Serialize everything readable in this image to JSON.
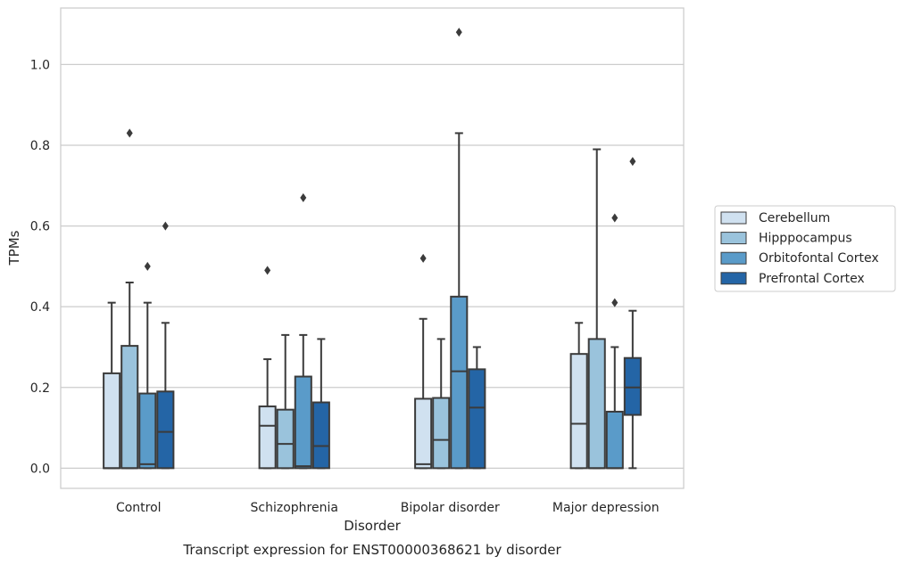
{
  "chart_data": {
    "type": "boxplot",
    "title": "Transcript expression for ENST00000368621 by disorder",
    "xlabel": "Disorder",
    "ylabel": "TPMs",
    "ylim": [
      -0.05,
      1.14
    ],
    "yticks": [
      0.0,
      0.2,
      0.4,
      0.6,
      0.8,
      1.0
    ],
    "ytick_labels": [
      "0.0",
      "0.2",
      "0.4",
      "0.6",
      "0.8",
      "1.0"
    ],
    "grid": "horizontal",
    "legend_position": "right",
    "categories": [
      "Control",
      "Schizophrenia",
      "Bipolar disorder",
      "Major depression"
    ],
    "series": [
      {
        "name": "Cerebellum",
        "color": "#d0e1f0",
        "boxes": [
          {
            "whislo": 0.0,
            "q1": 0.0,
            "med": 0.0,
            "q3": 0.235,
            "whishi": 0.41,
            "fliers": []
          },
          {
            "whislo": 0.0,
            "q1": 0.0,
            "med": 0.105,
            "q3": 0.153,
            "whishi": 0.27,
            "fliers": [
              0.49
            ]
          },
          {
            "whislo": 0.0,
            "q1": 0.0,
            "med": 0.01,
            "q3": 0.172,
            "whishi": 0.37,
            "fliers": [
              0.52
            ]
          },
          {
            "whislo": 0.0,
            "q1": 0.0,
            "med": 0.11,
            "q3": 0.283,
            "whishi": 0.36,
            "fliers": []
          }
        ]
      },
      {
        "name": "Hipppocampus",
        "color": "#9ac3dc",
        "boxes": [
          {
            "whislo": 0.0,
            "q1": 0.0,
            "med": 0.0,
            "q3": 0.303,
            "whishi": 0.46,
            "fliers": [
              0.83
            ]
          },
          {
            "whislo": 0.0,
            "q1": 0.0,
            "med": 0.06,
            "q3": 0.145,
            "whishi": 0.33,
            "fliers": []
          },
          {
            "whislo": 0.0,
            "q1": 0.0,
            "med": 0.07,
            "q3": 0.174,
            "whishi": 0.32,
            "fliers": []
          },
          {
            "whislo": 0.0,
            "q1": 0.0,
            "med": 0.0,
            "q3": 0.32,
            "whishi": 0.79,
            "fliers": []
          }
        ]
      },
      {
        "name": "Orbitofontal Cortex",
        "color": "#5a9bc9",
        "boxes": [
          {
            "whislo": 0.0,
            "q1": 0.0,
            "med": 0.01,
            "q3": 0.185,
            "whishi": 0.41,
            "fliers": [
              0.5
            ]
          },
          {
            "whislo": 0.0,
            "q1": 0.0,
            "med": 0.005,
            "q3": 0.227,
            "whishi": 0.33,
            "fliers": [
              0.67
            ]
          },
          {
            "whislo": 0.0,
            "q1": 0.0,
            "med": 0.24,
            "q3": 0.425,
            "whishi": 0.83,
            "fliers": [
              1.08
            ]
          },
          {
            "whislo": 0.0,
            "q1": 0.0,
            "med": 0.0,
            "q3": 0.14,
            "whishi": 0.3,
            "fliers": [
              0.41,
              0.62
            ]
          }
        ]
      },
      {
        "name": "Prefrontal Cortex",
        "color": "#2465a6",
        "boxes": [
          {
            "whislo": 0.0,
            "q1": 0.0,
            "med": 0.09,
            "q3": 0.19,
            "whishi": 0.36,
            "fliers": [
              0.6
            ]
          },
          {
            "whislo": 0.0,
            "q1": 0.0,
            "med": 0.055,
            "q3": 0.163,
            "whishi": 0.32,
            "fliers": []
          },
          {
            "whislo": 0.0,
            "q1": 0.0,
            "med": 0.15,
            "q3": 0.245,
            "whishi": 0.3,
            "fliers": []
          },
          {
            "whislo": 0.0,
            "q1": 0.132,
            "med": 0.2,
            "q3": 0.273,
            "whishi": 0.39,
            "fliers": [
              0.76
            ]
          }
        ]
      }
    ]
  }
}
